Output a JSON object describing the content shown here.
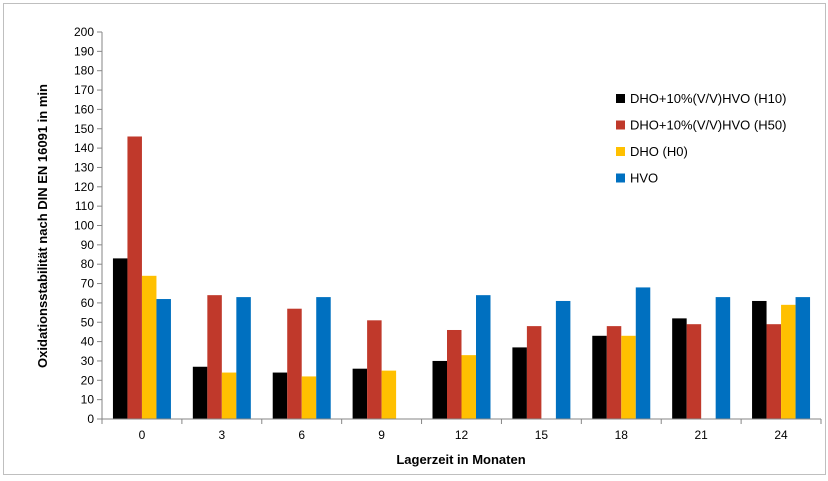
{
  "chart_data": {
    "type": "bar",
    "title": "",
    "xlabel": "Lagerzeit in Monaten",
    "ylabel": "Oxidationsstabilität nach DIN EN 16091 in min",
    "ylim": [
      0,
      200
    ],
    "ytick_step": 10,
    "grid": false,
    "legend_position": "right",
    "categories": [
      "0",
      "3",
      "6",
      "9",
      "12",
      "15",
      "18",
      "21",
      "24"
    ],
    "series": [
      {
        "name": "DHO+10%(V/V)HVO (H10)",
        "color": "#000000",
        "values": [
          83,
          27,
          24,
          26,
          30,
          37,
          43,
          52,
          61
        ]
      },
      {
        "name": "DHO+10%(V/V)HVO (H50)",
        "color": "#c0392b",
        "values": [
          146,
          64,
          57,
          51,
          46,
          48,
          48,
          49,
          49
        ]
      },
      {
        "name": "DHO (H0)",
        "color": "#ffc000",
        "values": [
          74,
          24,
          22,
          25,
          33,
          null,
          43,
          null,
          59
        ]
      },
      {
        "name": "HVO",
        "color": "#0070c0",
        "values": [
          62,
          63,
          63,
          null,
          64,
          61,
          68,
          63,
          63
        ]
      }
    ]
  }
}
